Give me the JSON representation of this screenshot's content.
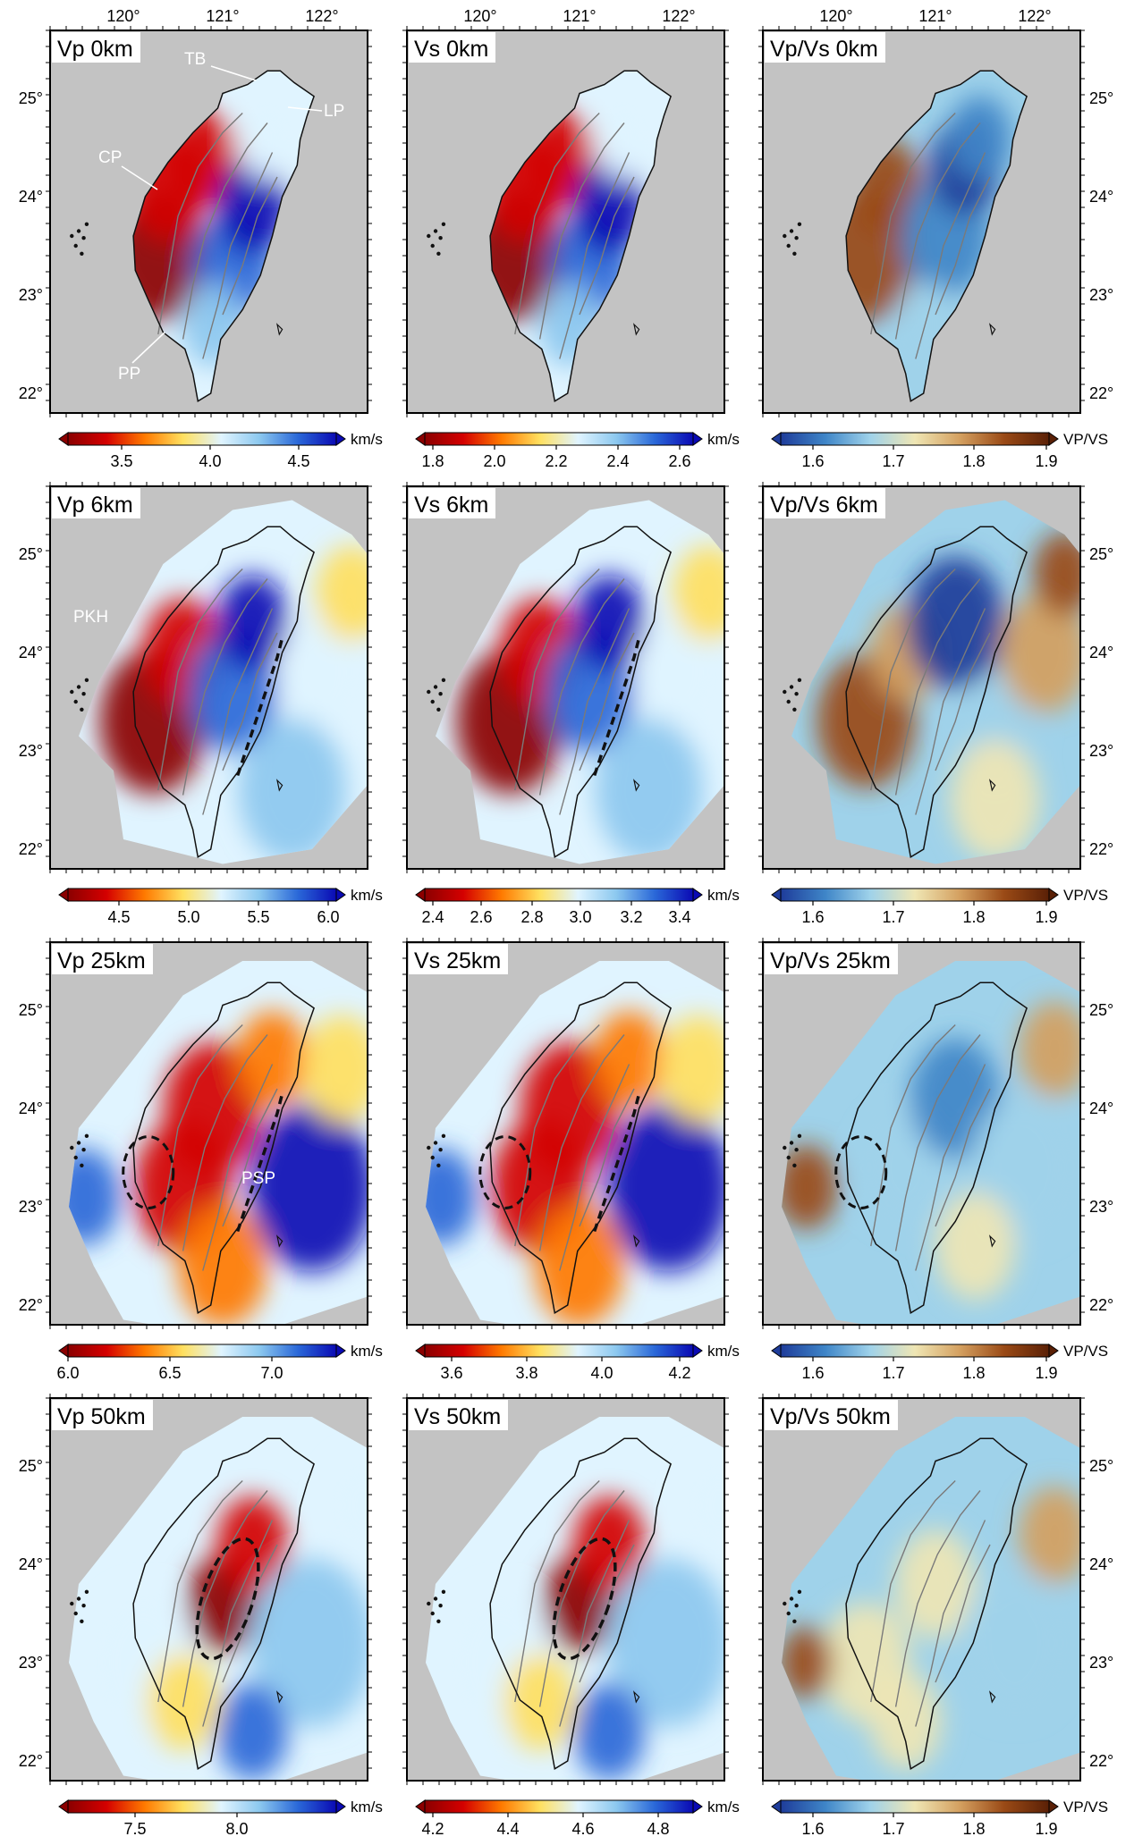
{
  "top_axis": [
    "120°",
    "121°",
    "122°"
  ],
  "left_axis": [
    "25°",
    "24°",
    "23°",
    "22°"
  ],
  "rows": [
    {
      "depth": "0km",
      "panels": [
        {
          "title": "Vp 0km",
          "scheme": "rb",
          "ticks": [
            "3.5",
            "4.0",
            "4.5"
          ],
          "tick_frac": [
            0.2,
            0.53,
            0.86
          ],
          "unit": "km/s"
        },
        {
          "title": "Vs 0km",
          "scheme": "rb",
          "ticks": [
            "1.8",
            "2.0",
            "2.2",
            "2.4",
            "2.6"
          ],
          "tick_frac": [
            0.03,
            0.26,
            0.49,
            0.72,
            0.95
          ],
          "unit": "km/s"
        },
        {
          "title": "Vp/Vs 0km",
          "scheme": "bb",
          "ticks": [
            "1.6",
            "1.7",
            "1.8",
            "1.9"
          ],
          "tick_frac": [
            0.12,
            0.42,
            0.72,
            0.99
          ],
          "unit": "VP/VS"
        }
      ]
    },
    {
      "depth": "6km",
      "panels": [
        {
          "title": "Vp 6km",
          "scheme": "rb",
          "ticks": [
            "4.5",
            "5.0",
            "5.5",
            "6.0"
          ],
          "tick_frac": [
            0.19,
            0.45,
            0.71,
            0.97
          ],
          "unit": "km/s"
        },
        {
          "title": "Vs 6km",
          "scheme": "rb",
          "ticks": [
            "2.4",
            "2.6",
            "2.8",
            "3.0",
            "3.2",
            "3.4"
          ],
          "tick_frac": [
            0.03,
            0.21,
            0.4,
            0.58,
            0.77,
            0.95
          ],
          "unit": "km/s"
        },
        {
          "title": "Vp/Vs 6km",
          "scheme": "bb",
          "ticks": [
            "1.6",
            "1.7",
            "1.8",
            "1.9"
          ],
          "tick_frac": [
            0.12,
            0.42,
            0.72,
            0.99
          ],
          "unit": "VP/VS"
        }
      ]
    },
    {
      "depth": "25km",
      "panels": [
        {
          "title": "Vp 25km",
          "scheme": "rb",
          "ticks": [
            "6.0",
            "6.5",
            "7.0"
          ],
          "tick_frac": [
            0.0,
            0.38,
            0.76
          ],
          "unit": "km/s"
        },
        {
          "title": "Vs 25km",
          "scheme": "rb",
          "ticks": [
            "3.6",
            "3.8",
            "4.0",
            "4.2"
          ],
          "tick_frac": [
            0.1,
            0.38,
            0.66,
            0.95
          ],
          "unit": "km/s"
        },
        {
          "title": "Vp/Vs 25km",
          "scheme": "bb",
          "ticks": [
            "1.6",
            "1.7",
            "1.8",
            "1.9"
          ],
          "tick_frac": [
            0.12,
            0.42,
            0.72,
            0.99
          ],
          "unit": "VP/VS"
        }
      ]
    },
    {
      "depth": "50km",
      "panels": [
        {
          "title": "Vp 50km",
          "scheme": "rb",
          "ticks": [
            "7.5",
            "8.0"
          ],
          "tick_frac": [
            0.25,
            0.63
          ],
          "unit": "km/s"
        },
        {
          "title": "Vs 50km",
          "scheme": "rb",
          "ticks": [
            "4.2",
            "4.4",
            "4.6",
            "4.8"
          ],
          "tick_frac": [
            0.03,
            0.31,
            0.59,
            0.87
          ],
          "unit": "km/s"
        },
        {
          "title": "Vp/Vs 50km",
          "scheme": "bb",
          "ticks": [
            "1.6",
            "1.7",
            "1.8",
            "1.9"
          ],
          "tick_frac": [
            0.12,
            0.42,
            0.72,
            0.99
          ],
          "unit": "VP/VS"
        }
      ]
    }
  ],
  "annotations": {
    "tb": "TB",
    "lp": "LP",
    "cp": "CP",
    "pp": "PP",
    "pkh": "PKH",
    "psp": "PSP"
  },
  "colors": {
    "background_gray": "#c3c3c3",
    "coast": "#111111",
    "contour": "#7a7a7a",
    "velocity_scale": [
      "#8b0000",
      "#d40000",
      "#ff7a00",
      "#ffe060",
      "#e0f4ff",
      "#8cc8ef",
      "#2a68d8",
      "#0a0ab4"
    ],
    "ratio_scale": [
      "#1e3c9a",
      "#3f86c8",
      "#9fd2ea",
      "#efe6b4",
      "#d4a060",
      "#9a4a16",
      "#5a2006"
    ]
  }
}
